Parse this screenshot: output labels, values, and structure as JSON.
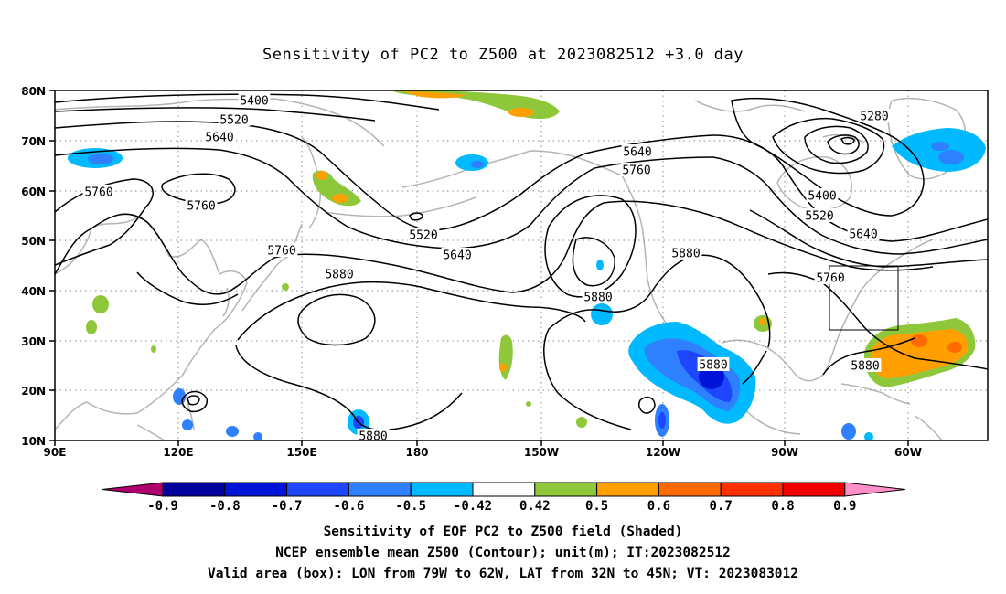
{
  "title": "Sensitivity of PC2 to Z500 at 2023082512 +3.0 day",
  "axes": {
    "lat_labels": [
      "80N",
      "70N",
      "60N",
      "50N",
      "40N",
      "30N",
      "20N",
      "10N"
    ],
    "lon_labels": [
      "90E",
      "120E",
      "150E",
      "180",
      "150W",
      "120W",
      "90W",
      "60W"
    ],
    "lat_range": [
      10,
      80
    ],
    "lon_range": [
      90,
      310
    ],
    "grid": "dotted"
  },
  "contours": {
    "unit": "m",
    "labels": [
      "5400",
      "5520",
      "5640",
      "5760",
      "5760",
      "5280",
      "5640",
      "5760",
      "5400",
      "5520",
      "5640",
      "5520",
      "5640",
      "5760",
      "5880",
      "5880",
      "5760",
      "5880",
      "5880",
      "5880",
      "5880"
    ]
  },
  "colorbar": {
    "labels": [
      "-0.9",
      "-0.8",
      "-0.7",
      "-0.6",
      "-0.5",
      "-0.42",
      "0.42",
      "0.5",
      "0.6",
      "0.7",
      "0.8",
      "0.9"
    ],
    "colors": [
      "#b0006e",
      "#00009c",
      "#0014d7",
      "#1e46ff",
      "#2e80ff",
      "#00b9ff",
      "#ffffff",
      "#8ec83a",
      "#ff9f00",
      "#ff6a00",
      "#ff3000",
      "#f00000",
      "#ff8fc8"
    ]
  },
  "valid_box": {
    "lon": [
      -79,
      -62
    ],
    "lat": [
      32,
      45
    ]
  },
  "caption": {
    "line1": "Sensitivity of EOF PC2 to Z500 field (Shaded)",
    "line2": "NCEP ensemble mean Z500 (Contour); unit(m); IT:2023082512",
    "line3": "Valid area (box): LON from 79W to 62W, LAT from 32N to 45N; VT: 2023083012"
  }
}
